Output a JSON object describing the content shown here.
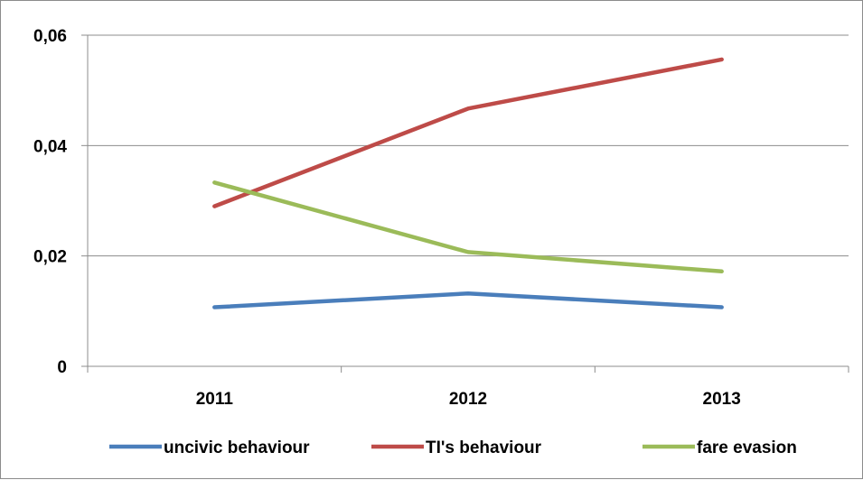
{
  "chart_data": {
    "type": "line",
    "categories": [
      "2011",
      "2012",
      "2013"
    ],
    "y_ticks": [
      "0",
      "0,02",
      "0,04",
      "0,06"
    ],
    "ylim": [
      0,
      0.06
    ],
    "grid": true,
    "legend_position": "bottom",
    "series": [
      {
        "name": "uncivic behaviour",
        "color": "#4a7ebb",
        "values": [
          0.0107,
          0.0132,
          0.0107
        ]
      },
      {
        "name": "TI's behaviour",
        "color": "#be4b48",
        "values": [
          0.029,
          0.0467,
          0.0556
        ]
      },
      {
        "name": "fare evasion",
        "color": "#9bbb59",
        "values": [
          0.0333,
          0.0207,
          0.0172
        ]
      }
    ]
  }
}
